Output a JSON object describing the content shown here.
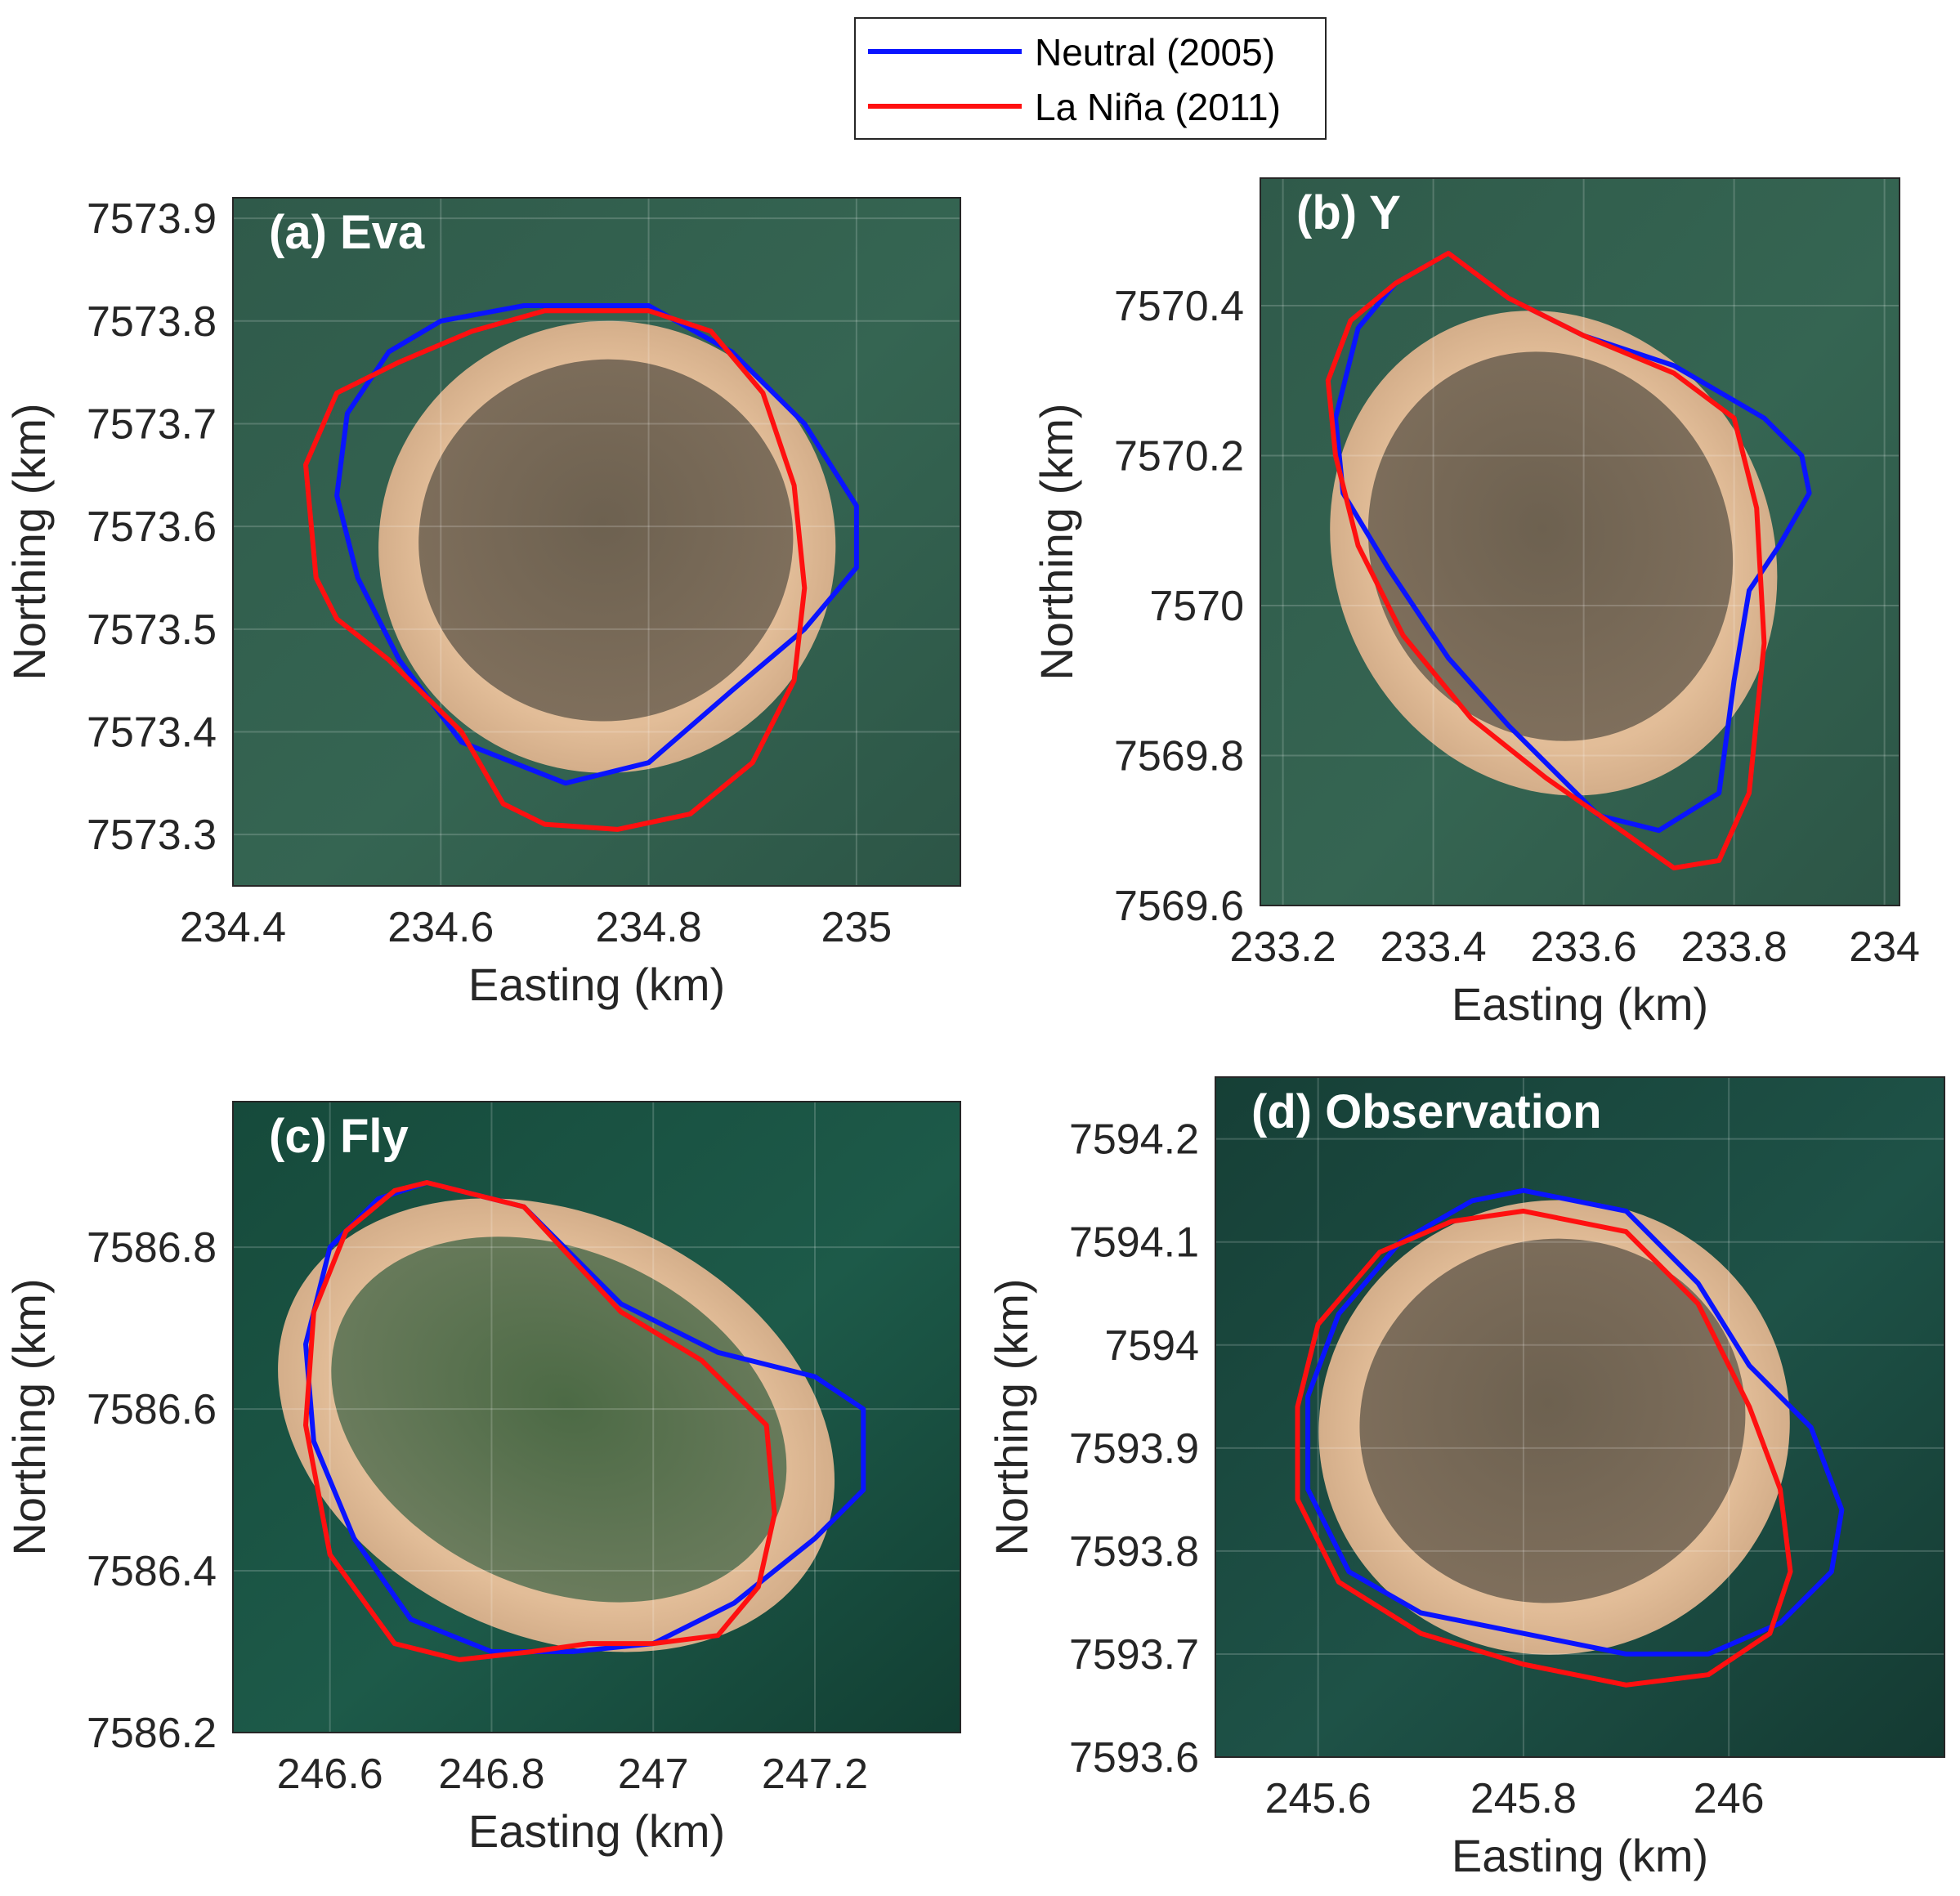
{
  "legend": {
    "position": "top-center",
    "entries": [
      {
        "label": "Neutral (2005)",
        "color": "#0a14ff"
      },
      {
        "label": "La Niña (2011)",
        "color": "#ff1010"
      }
    ]
  },
  "chart_data": [
    {
      "type": "line",
      "title": "(a) Eva",
      "xlabel": "Easting (km)",
      "ylabel": "Northing (km)",
      "xlim": [
        234.4,
        235.1
      ],
      "ylim": [
        7573.25,
        7573.92
      ],
      "xticks": [
        234.4,
        234.6,
        234.8,
        235
      ],
      "xtick_labels": [
        "234.4",
        "234.6",
        "234.8",
        "235"
      ],
      "yticks": [
        7573.3,
        7573.4,
        7573.5,
        7573.6,
        7573.7,
        7573.8,
        7573.9
      ],
      "ytick_labels": [
        "7573.3",
        "7573.4",
        "7573.5",
        "7573.6",
        "7573.7",
        "7573.8",
        "7573.9"
      ],
      "island": {
        "cx": 234.76,
        "cy": 7573.58,
        "rx": 0.22,
        "ry": 0.22,
        "rot": -10
      },
      "series": [
        {
          "name": "Neutral (2005)",
          "color": "#0a14ff",
          "x": [
            234.68,
            234.8,
            234.88,
            234.95,
            235.0,
            235.0,
            234.95,
            234.88,
            234.8,
            234.72,
            234.62,
            234.56,
            234.52,
            234.5,
            234.51,
            234.55,
            234.6,
            234.68
          ],
          "y": [
            7573.815,
            7573.815,
            7573.77,
            7573.7,
            7573.62,
            7573.56,
            7573.5,
            7573.44,
            7573.37,
            7573.35,
            7573.39,
            7573.47,
            7573.55,
            7573.63,
            7573.71,
            7573.77,
            7573.8,
            7573.815
          ]
        },
        {
          "name": "La Niña (2011)",
          "color": "#ff1010",
          "x": [
            234.7,
            234.8,
            234.86,
            234.91,
            234.94,
            234.95,
            234.94,
            234.9,
            234.84,
            234.77,
            234.7,
            234.66,
            234.62,
            234.55,
            234.5,
            234.48,
            234.47,
            234.5,
            234.56,
            234.63,
            234.7
          ],
          "y": [
            7573.81,
            7573.81,
            7573.79,
            7573.73,
            7573.64,
            7573.54,
            7573.45,
            7573.37,
            7573.32,
            7573.305,
            7573.31,
            7573.33,
            7573.4,
            7573.47,
            7573.51,
            7573.55,
            7573.66,
            7573.73,
            7573.76,
            7573.79,
            7573.81
          ]
        }
      ]
    },
    {
      "type": "line",
      "title": "(b) Y",
      "xlabel": "Easting (km)",
      "ylabel": "Northing (km)",
      "xlim": [
        233.17,
        234.02
      ],
      "ylim": [
        7569.6,
        7570.57
      ],
      "xticks": [
        233.2,
        233.4,
        233.6,
        233.8,
        234
      ],
      "xtick_labels": [
        "233.2",
        "233.4",
        "233.6",
        "233.8",
        "234"
      ],
      "yticks": [
        7569.6,
        7569.8,
        7570,
        7570.2,
        7570.4
      ],
      "ytick_labels": [
        "7569.6",
        "7569.8",
        "7570",
        "7570.2",
        "7570.4"
      ],
      "island": {
        "cx": 233.56,
        "cy": 7570.07,
        "rx": 0.29,
        "ry": 0.33,
        "rot": -25
      },
      "series": [
        {
          "name": "Neutral (2005)",
          "color": "#0a14ff",
          "x": [
            233.35,
            233.42,
            233.5,
            233.6,
            233.72,
            233.84,
            233.89,
            233.9,
            233.86,
            233.82,
            233.8,
            233.78,
            233.7,
            233.62,
            233.5,
            233.42,
            233.34,
            233.28,
            233.27,
            233.3,
            233.35
          ],
          "y": [
            7570.43,
            7570.47,
            7570.41,
            7570.36,
            7570.32,
            7570.25,
            7570.2,
            7570.15,
            7570.08,
            7570.02,
            7569.9,
            7569.75,
            7569.7,
            7569.72,
            7569.84,
            7569.93,
            7570.05,
            7570.15,
            7570.25,
            7570.37,
            7570.43
          ]
        },
        {
          "name": "La Niña (2011)",
          "color": "#ff1010",
          "x": [
            233.35,
            233.42,
            233.5,
            233.6,
            233.72,
            233.8,
            233.83,
            233.84,
            233.82,
            233.78,
            233.72,
            233.65,
            233.55,
            233.45,
            233.36,
            233.3,
            233.27,
            233.26,
            233.29,
            233.35
          ],
          "y": [
            7570.43,
            7570.47,
            7570.41,
            7570.36,
            7570.31,
            7570.25,
            7570.13,
            7569.95,
            7569.75,
            7569.66,
            7569.65,
            7569.7,
            7569.77,
            7569.85,
            7569.96,
            7570.08,
            7570.2,
            7570.3,
            7570.38,
            7570.43
          ]
        }
      ]
    },
    {
      "type": "line",
      "title": "(c) Fly",
      "xlabel": "Easting (km)",
      "ylabel": "Northing (km)",
      "xlim": [
        246.48,
        247.38
      ],
      "ylim": [
        7586.2,
        7586.98
      ],
      "xticks": [
        246.6,
        246.8,
        247,
        247.2
      ],
      "xtick_labels": [
        "246.6",
        "246.8",
        "247",
        "247.2"
      ],
      "yticks": [
        7586.2,
        7586.4,
        7586.6,
        7586.8
      ],
      "ytick_labels": [
        "7586.2",
        "7586.4",
        "7586.6",
        "7586.8"
      ],
      "island": {
        "cx": 246.88,
        "cy": 7586.58,
        "rx": 0.36,
        "ry": 0.26,
        "rot": 25
      },
      "series": [
        {
          "name": "Neutral (2005)",
          "color": "#0a14ff",
          "x": [
            246.72,
            246.84,
            246.96,
            247.08,
            247.2,
            247.26,
            247.26,
            247.2,
            247.1,
            247.0,
            246.9,
            246.8,
            246.7,
            246.63,
            246.58,
            246.57,
            246.6,
            246.66,
            246.72
          ],
          "y": [
            7586.88,
            7586.85,
            7586.73,
            7586.67,
            7586.64,
            7586.6,
            7586.5,
            7586.44,
            7586.36,
            7586.31,
            7586.3,
            7586.3,
            7586.34,
            7586.44,
            7586.56,
            7586.68,
            7586.8,
            7586.86,
            7586.88
          ]
        },
        {
          "name": "La Niña (2011)",
          "color": "#ff1010",
          "x": [
            246.72,
            246.84,
            246.96,
            247.06,
            247.14,
            247.15,
            247.13,
            247.08,
            247.0,
            246.92,
            246.85,
            246.76,
            246.68,
            246.6,
            246.57,
            246.58,
            246.62,
            246.68,
            246.72
          ],
          "y": [
            7586.88,
            7586.85,
            7586.72,
            7586.66,
            7586.58,
            7586.47,
            7586.38,
            7586.32,
            7586.31,
            7586.31,
            7586.3,
            7586.29,
            7586.31,
            7586.42,
            7586.58,
            7586.72,
            7586.82,
            7586.87,
            7586.88
          ]
        }
      ]
    },
    {
      "type": "line",
      "title": "(d) Observation",
      "xlabel": "Easting (km)",
      "ylabel": "Northing (km)",
      "xlim": [
        245.5,
        246.21
      ],
      "ylim": [
        7593.6,
        7594.26
      ],
      "xticks": [
        245.6,
        245.8,
        246
      ],
      "xtick_labels": [
        "245.6",
        "245.8",
        "246"
      ],
      "yticks": [
        7593.6,
        7593.7,
        7593.8,
        7593.9,
        7594,
        7594.1,
        7594.2
      ],
      "ytick_labels": [
        "7593.6",
        "7593.7",
        "7593.8",
        "7593.9",
        "7594",
        "7594.1",
        "7594.2"
      ],
      "island": {
        "cx": 245.83,
        "cy": 7593.92,
        "rx": 0.23,
        "ry": 0.22,
        "rot": -15
      },
      "series": [
        {
          "name": "Neutral (2005)",
          "color": "#0a14ff",
          "x": [
            245.8,
            245.9,
            245.97,
            246.02,
            246.08,
            246.11,
            246.1,
            246.05,
            245.98,
            245.9,
            245.8,
            245.7,
            245.63,
            245.59,
            245.59,
            245.62,
            245.68,
            245.75,
            245.8
          ],
          "y": [
            7594.15,
            7594.13,
            7594.06,
            7593.98,
            7593.92,
            7593.84,
            7593.78,
            7593.73,
            7593.7,
            7593.7,
            7593.72,
            7593.74,
            7593.78,
            7593.86,
            7593.95,
            7594.03,
            7594.1,
            7594.14,
            7594.15
          ]
        },
        {
          "name": "La Niña (2011)",
          "color": "#ff1010",
          "x": [
            245.8,
            245.9,
            245.97,
            246.02,
            246.05,
            246.06,
            246.04,
            245.98,
            245.9,
            245.8,
            245.7,
            245.62,
            245.58,
            245.58,
            245.6,
            245.66,
            245.73,
            245.8
          ],
          "y": [
            7594.13,
            7594.11,
            7594.04,
            7593.94,
            7593.86,
            7593.78,
            7593.72,
            7593.68,
            7593.67,
            7593.69,
            7593.72,
            7593.77,
            7593.85,
            7593.94,
            7594.02,
            7594.09,
            7594.12,
            7594.13
          ]
        }
      ]
    }
  ]
}
